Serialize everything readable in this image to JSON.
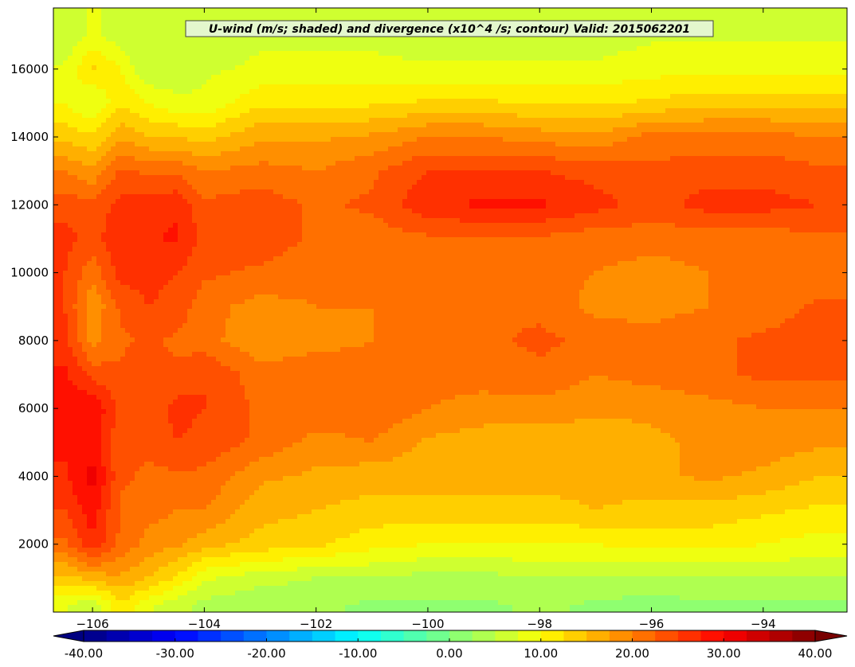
{
  "chart_data": {
    "type": "heatmap",
    "title": "U-wind (m/s; shaded) and divergence (x10^4 /s; contour) Valid: 2015062201",
    "xlabel": "",
    "ylabel": "",
    "xlim": [
      -106.7,
      -92.5
    ],
    "ylim": [
      0,
      17800
    ],
    "grid": false,
    "x_ticks": [
      -106,
      -104,
      -102,
      -100,
      -98,
      -96,
      -94
    ],
    "x_tick_labels": [
      "−106",
      "−104",
      "−102",
      "−100",
      "−98",
      "−96",
      "−94"
    ],
    "y_ticks": [
      2000,
      4000,
      6000,
      8000,
      10000,
      12000,
      14000,
      16000
    ],
    "y_tick_labels": [
      "2000",
      "4000",
      "6000",
      "8000",
      "10000",
      "12000",
      "14000",
      "16000"
    ],
    "colorbar": {
      "min": -40,
      "max": 40,
      "step": 2.5,
      "extend": "both",
      "ticks": [
        -40,
        -30,
        -20,
        -10,
        0,
        10,
        20,
        30,
        40
      ],
      "tick_labels": [
        "-40.00",
        "-30.00",
        "-20.00",
        "-10.00",
        "0.00",
        "10.00",
        "20.00",
        "30.00",
        "40.00"
      ]
    },
    "x": [
      -106.5,
      -106,
      -105.5,
      -105,
      -104.5,
      -104,
      -103,
      -102,
      -101,
      -100,
      -99,
      -98,
      -97,
      -96,
      -95,
      -94,
      -93
    ],
    "y": [
      200,
      1000,
      2000,
      3000,
      4000,
      5000,
      6000,
      7000,
      8000,
      9000,
      10000,
      11000,
      12000,
      13000,
      14000,
      15000,
      16000,
      17000
    ],
    "z": [
      [
        8,
        5,
        12,
        8,
        6,
        4,
        3,
        3,
        2,
        2,
        2,
        3,
        2,
        1,
        2,
        2,
        2
      ],
      [
        14,
        16,
        17,
        15,
        12,
        8,
        6,
        5,
        5,
        4,
        4,
        5,
        5,
        5,
        5,
        5,
        5
      ],
      [
        22,
        27,
        22,
        19,
        18,
        16,
        14,
        13,
        11,
        10,
        10,
        10,
        10,
        11,
        11,
        10,
        9
      ],
      [
        25,
        29,
        22,
        21,
        20,
        20,
        16,
        15,
        14,
        14,
        14,
        14,
        15,
        14,
        14,
        13,
        12
      ],
      [
        27,
        31,
        23,
        22,
        22,
        22,
        18,
        17,
        16,
        16,
        16,
        16,
        16,
        17,
        18,
        17,
        15
      ],
      [
        28,
        29,
        23,
        23,
        25,
        24,
        22,
        19,
        20,
        17,
        16,
        16,
        16,
        17,
        18,
        19,
        18
      ],
      [
        29,
        30,
        24,
        23,
        26,
        25,
        22,
        22,
        22,
        20,
        19,
        19,
        18,
        18,
        19,
        20,
        20
      ],
      [
        28,
        24,
        23,
        24,
        23,
        25,
        21,
        22,
        21,
        21,
        21,
        22,
        20,
        21,
        22,
        23,
        23
      ],
      [
        26,
        19,
        22,
        23,
        22,
        21,
        18,
        19,
        20,
        21,
        22,
        23,
        22,
        21,
        22,
        23,
        24
      ],
      [
        25,
        18,
        23,
        25,
        24,
        21,
        19,
        20,
        20,
        21,
        22,
        22,
        19,
        19,
        20,
        21,
        23
      ],
      [
        25,
        21,
        26,
        26,
        25,
        23,
        22,
        21,
        20,
        21,
        21,
        21,
        20,
        19,
        20,
        20,
        21
      ],
      [
        26,
        24,
        27,
        27,
        28,
        24,
        24,
        22,
        21,
        22,
        22,
        22,
        21,
        21,
        21,
        21,
        22
      ],
      [
        24,
        23,
        26,
        26,
        27,
        23,
        24,
        22,
        23,
        27,
        28,
        28,
        26,
        24,
        26,
        26,
        25
      ],
      [
        20,
        18,
        23,
        22,
        22,
        20,
        21,
        20,
        22,
        25,
        25,
        25,
        24,
        23,
        24,
        24,
        23
      ],
      [
        14,
        13,
        17,
        15,
        15,
        14,
        17,
        17,
        18,
        20,
        20,
        19,
        18,
        21,
        21,
        21,
        20
      ],
      [
        10,
        7,
        12,
        10,
        8,
        8,
        12,
        12,
        12,
        13,
        13,
        12,
        12,
        13,
        14,
        14,
        14
      ],
      [
        8,
        13,
        10,
        5,
        6,
        7,
        8,
        8,
        8,
        8,
        8,
        8,
        8,
        9,
        9,
        9,
        9
      ],
      [
        5,
        8,
        6,
        5,
        6,
        6,
        7,
        7,
        7,
        6,
        6,
        6,
        6,
        7,
        7,
        7,
        7
      ]
    ]
  }
}
